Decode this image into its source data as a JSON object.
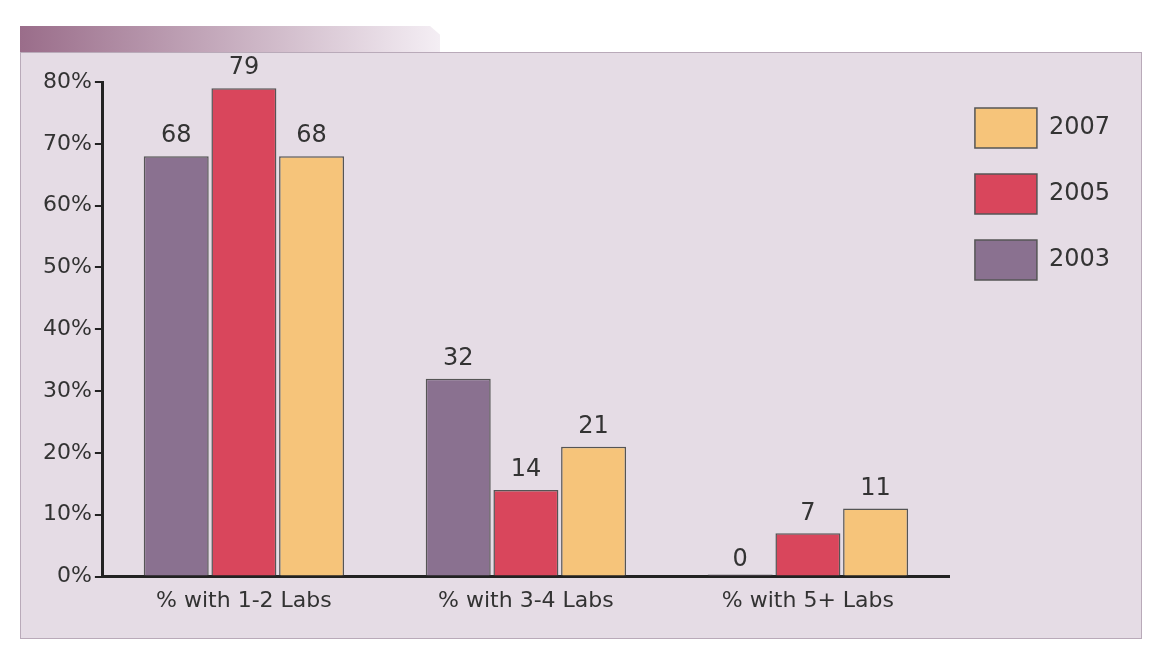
{
  "chart_data": {
    "type": "bar",
    "categories": [
      "% with 1-2 Labs",
      "% with 3-4 Labs",
      "% with 5+ Labs"
    ],
    "series": [
      {
        "name": "2003",
        "color": "#8a7190",
        "values": [
          68,
          32,
          0
        ]
      },
      {
        "name": "2005",
        "color": "#d9465c",
        "values": [
          79,
          14,
          7
        ]
      },
      {
        "name": "2007",
        "color": "#f6c47a",
        "values": [
          68,
          21,
          11
        ]
      }
    ],
    "ylim": [
      0,
      80
    ],
    "yticks": [
      {
        "value": 0,
        "label": "0%"
      },
      {
        "value": 10,
        "label": "10%"
      },
      {
        "value": 20,
        "label": "20%"
      },
      {
        "value": 30,
        "label": "30%"
      },
      {
        "value": 40,
        "label": "40%"
      },
      {
        "value": 50,
        "label": "50%"
      },
      {
        "value": 60,
        "label": "60%"
      },
      {
        "value": 70,
        "label": "70%"
      },
      {
        "value": 80,
        "label": "80%"
      }
    ],
    "data_labels": true,
    "grid": false,
    "legend": "top right"
  }
}
